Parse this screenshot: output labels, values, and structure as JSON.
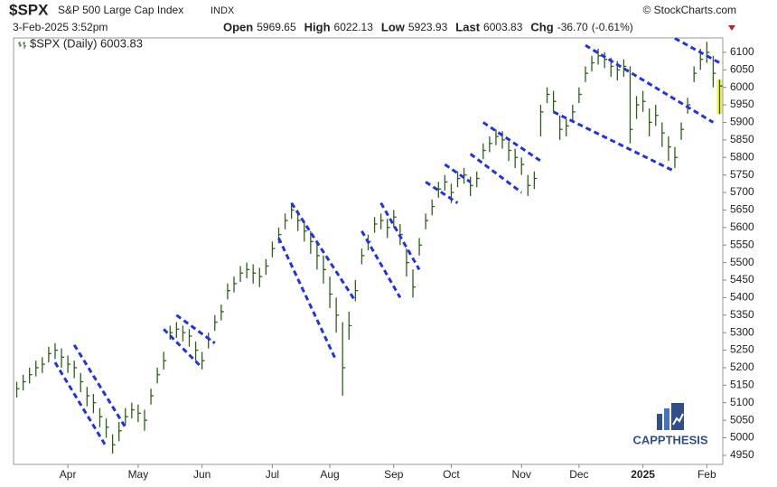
{
  "quote": {
    "symbol": "$SPX",
    "name": "S&P 500 Large Cap Index",
    "exchange": "INDX",
    "source": "© StockCharts.com",
    "datetime": "3-Feb-2025 3:52pm",
    "fields": [
      {
        "label": "Open",
        "value": "5969.65"
      },
      {
        "label": "High",
        "value": "6022.13"
      },
      {
        "label": "Low",
        "value": "5923.93"
      },
      {
        "label": "Last",
        "value": "6003.83"
      },
      {
        "label": "Chg",
        "value": "-36.70"
      }
    ],
    "chg_pct": "(-0.61%)",
    "watermark": "CAPPTHESIS"
  },
  "chart_data": {
    "type": "ohlc",
    "legend": "$SPX (Daily) 6003.83",
    "color": "#2f5e1c",
    "trend_color": "#2233dd",
    "categories": [
      null,
      null,
      null,
      null,
      null,
      null,
      null,
      null,
      "Apr",
      null,
      null,
      null,
      null,
      null,
      null,
      null,
      null,
      null,
      null,
      "May",
      null,
      null,
      null,
      null,
      null,
      null,
      null,
      null,
      null,
      "Jun",
      null,
      null,
      null,
      null,
      null,
      null,
      null,
      null,
      null,
      null,
      "Jul",
      null,
      null,
      null,
      null,
      null,
      null,
      null,
      null,
      "Aug",
      null,
      null,
      null,
      null,
      null,
      null,
      null,
      null,
      null,
      "Sep",
      null,
      null,
      null,
      null,
      null,
      null,
      null,
      null,
      "Oct",
      null,
      null,
      null,
      null,
      null,
      null,
      null,
      null,
      null,
      null,
      "Nov",
      null,
      null,
      null,
      null,
      null,
      null,
      null,
      null,
      "Dec",
      null,
      null,
      null,
      null,
      null,
      null,
      null,
      null,
      null,
      "2025",
      null,
      null,
      null,
      null,
      null,
      null,
      null,
      null,
      null,
      "Feb",
      null,
      null
    ],
    "high": [
      5160,
      5180,
      5200,
      5220,
      5230,
      5260,
      5270,
      5255,
      5235,
      5220,
      5185,
      5145,
      5125,
      5085,
      5055,
      5010,
      5045,
      5085,
      5100,
      5095,
      5080,
      5140,
      5200,
      5245,
      5320,
      5330,
      5320,
      5310,
      5275,
      5245,
      5300,
      5350,
      5380,
      5440,
      5460,
      5490,
      5500,
      5495,
      5485,
      5510,
      5560,
      5600,
      5640,
      5670,
      5650,
      5615,
      5590,
      5560,
      5520,
      5460,
      5400,
      5330,
      5360,
      5450,
      5540,
      5580,
      5630,
      5640,
      5625,
      5650,
      5610,
      5540,
      5480,
      5570,
      5640,
      5680,
      5730,
      5750,
      5725,
      5760,
      5770,
      5745,
      5760,
      5840,
      5860,
      5880,
      5875,
      5845,
      5825,
      5800,
      5750,
      5760,
      5950,
      6000,
      5990,
      5920,
      5910,
      5950,
      6000,
      6060,
      6090,
      6110,
      6100,
      6085,
      6075,
      6080,
      6060,
      5975,
      5990,
      5940,
      5950,
      5900,
      5860,
      5830,
      5900,
      5970,
      6060,
      6110,
      6130,
      6090,
      6022.13
    ],
    "low": [
      5115,
      5135,
      5155,
      5175,
      5185,
      5215,
      5225,
      5200,
      5185,
      5170,
      5130,
      5090,
      5070,
      5030,
      5000,
      4955,
      4990,
      5035,
      5055,
      5045,
      5020,
      5095,
      5155,
      5195,
      5280,
      5285,
      5275,
      5260,
      5220,
      5195,
      5255,
      5305,
      5335,
      5395,
      5415,
      5445,
      5455,
      5440,
      5430,
      5465,
      5515,
      5555,
      5595,
      5625,
      5590,
      5560,
      5525,
      5480,
      5440,
      5370,
      5300,
      5120,
      5280,
      5390,
      5495,
      5535,
      5585,
      5595,
      5570,
      5600,
      5550,
      5460,
      5400,
      5520,
      5595,
      5635,
      5685,
      5705,
      5670,
      5715,
      5725,
      5690,
      5715,
      5795,
      5815,
      5835,
      5825,
      5790,
      5770,
      5750,
      5690,
      5710,
      5860,
      5955,
      5930,
      5850,
      5860,
      5905,
      5955,
      6015,
      6045,
      6065,
      6055,
      6030,
      6020,
      6030,
      5840,
      5910,
      5930,
      5860,
      5890,
      5830,
      5790,
      5770,
      5850,
      5925,
      6015,
      6050,
      6070,
      6000,
      5923.93
    ],
    "close": [
      5140,
      5160,
      5180,
      5200,
      5210,
      5240,
      5250,
      5230,
      5210,
      5200,
      5160,
      5120,
      5100,
      5060,
      5030,
      4980,
      5020,
      5060,
      5080,
      5070,
      5050,
      5120,
      5180,
      5220,
      5300,
      5310,
      5300,
      5290,
      5250,
      5220,
      5280,
      5330,
      5360,
      5420,
      5440,
      5470,
      5480,
      5470,
      5460,
      5490,
      5540,
      5580,
      5620,
      5650,
      5620,
      5590,
      5560,
      5520,
      5480,
      5410,
      5350,
      5200,
      5320,
      5420,
      5520,
      5560,
      5610,
      5620,
      5600,
      5630,
      5580,
      5500,
      5430,
      5550,
      5620,
      5660,
      5710,
      5730,
      5700,
      5740,
      5750,
      5720,
      5740,
      5820,
      5840,
      5860,
      5850,
      5820,
      5800,
      5780,
      5720,
      5740,
      5930,
      5980,
      5960,
      5880,
      5890,
      5930,
      5980,
      6040,
      6070,
      6090,
      6080,
      6060,
      6050,
      6060,
      5880,
      5950,
      5960,
      5900,
      5920,
      5870,
      5830,
      5800,
      5880,
      5950,
      6040,
      6080,
      6100,
      6040,
      6003.83
    ],
    "trendlines": [
      {
        "from": [
          6,
          5215
        ],
        "to": [
          14,
          4975
        ]
      },
      {
        "from": [
          9,
          5265
        ],
        "to": [
          17,
          5030
        ]
      },
      {
        "from": [
          23,
          5310
        ],
        "to": [
          29,
          5200
        ]
      },
      {
        "from": [
          25,
          5350
        ],
        "to": [
          31,
          5270
        ]
      },
      {
        "from": [
          41,
          5570
        ],
        "to": [
          50,
          5220
        ]
      },
      {
        "from": [
          43,
          5670
        ],
        "to": [
          53,
          5390
        ]
      },
      {
        "from": [
          54,
          5590
        ],
        "to": [
          60,
          5400
        ]
      },
      {
        "from": [
          57,
          5670
        ],
        "to": [
          63,
          5480
        ]
      },
      {
        "from": [
          64,
          5730
        ],
        "to": [
          69,
          5670
        ]
      },
      {
        "from": [
          67,
          5780
        ],
        "to": [
          71,
          5730
        ]
      },
      {
        "from": [
          71,
          5810
        ],
        "to": [
          79,
          5700
        ]
      },
      {
        "from": [
          73,
          5900
        ],
        "to": [
          82,
          5790
        ]
      },
      {
        "from": [
          84,
          5930
        ],
        "to": [
          103,
          5760
        ]
      },
      {
        "from": [
          89,
          6120
        ],
        "to": [
          109,
          5900
        ]
      },
      {
        "from": [
          103,
          6140
        ],
        "to": [
          110,
          6070
        ]
      }
    ],
    "ylim": [
      4924,
      6141
    ],
    "yticks": [
      4950,
      5000,
      5050,
      5100,
      5150,
      5200,
      5250,
      5300,
      5350,
      5400,
      5450,
      5500,
      5550,
      5600,
      5650,
      5700,
      5750,
      5800,
      5850,
      5900,
      5950,
      6000,
      6050,
      6100
    ],
    "grid": false
  }
}
